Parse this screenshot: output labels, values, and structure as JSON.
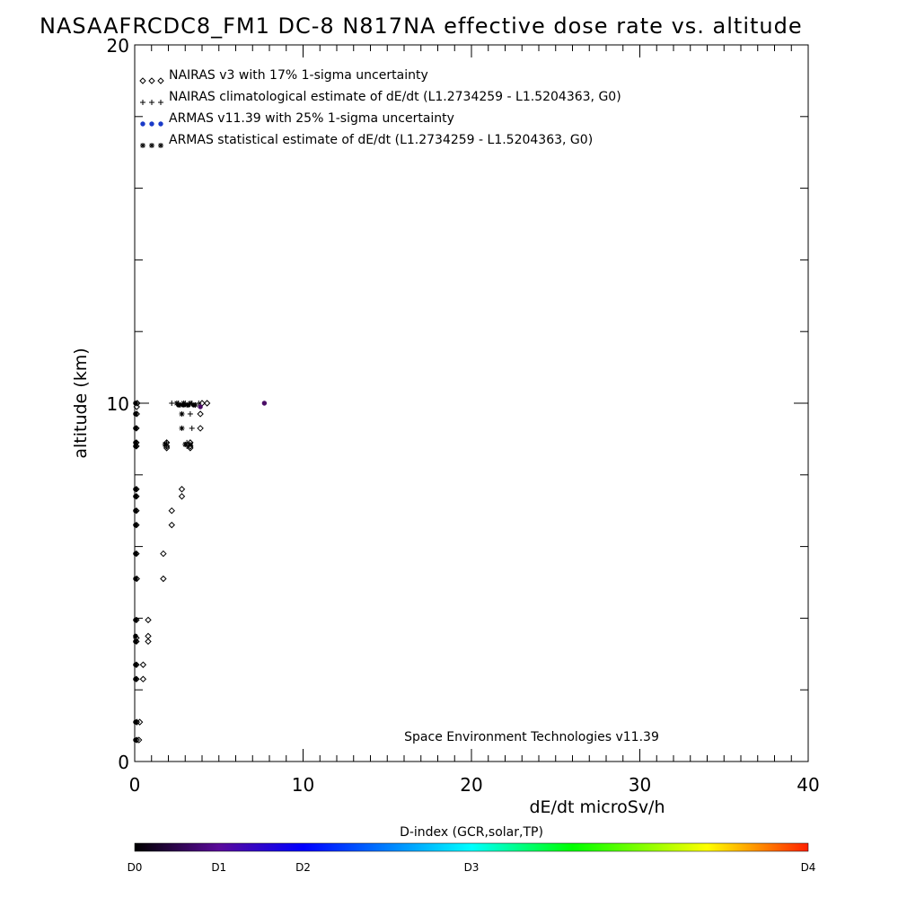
{
  "chart_data": {
    "type": "scatter",
    "title": "NASAAFRCDC8_FM1 DC-8   N817NA effective dose rate vs. altitude",
    "xlabel": "dE/dt microSv/h",
    "ylabel": "altitude (km)",
    "xlim": [
      0,
      40
    ],
    "ylim": [
      0,
      20
    ],
    "x_ticks": [
      0,
      10,
      20,
      30,
      40
    ],
    "y_ticks": [
      0,
      10,
      20
    ],
    "grid": false,
    "legend_position": "top-left",
    "annotation": "Space Environment Technologies v11.39",
    "colorbar": {
      "title": "D-index (GCR,solar,TP)",
      "labels": [
        "D0",
        "D1",
        "D2",
        "D3",
        "D4"
      ],
      "label_positions": [
        0,
        0.125,
        0.25,
        0.5,
        1.0
      ]
    },
    "series": [
      {
        "name": "NAIRAS v3 with 17% 1-sigma uncertainty",
        "marker": "diamond",
        "color": "#000000",
        "points": [
          [
            0.15,
            10.0
          ],
          [
            0.12,
            9.9
          ],
          [
            0.12,
            9.7
          ],
          [
            0.1,
            9.3
          ],
          [
            0.1,
            8.9
          ],
          [
            0.1,
            8.8
          ],
          [
            0.1,
            7.6
          ],
          [
            0.1,
            7.4
          ],
          [
            0.1,
            7.0
          ],
          [
            0.1,
            6.6
          ],
          [
            0.1,
            5.8
          ],
          [
            0.12,
            5.1
          ],
          [
            0.1,
            3.95
          ],
          [
            0.1,
            3.45
          ],
          [
            0.1,
            3.35
          ],
          [
            0.1,
            2.7
          ],
          [
            0.1,
            2.3
          ],
          [
            0.12,
            1.1
          ],
          [
            0.12,
            0.6
          ],
          [
            0.8,
            3.95
          ],
          [
            0.8,
            3.5
          ],
          [
            0.8,
            3.35
          ],
          [
            0.5,
            2.7
          ],
          [
            0.5,
            2.3
          ],
          [
            0.3,
            1.1
          ],
          [
            0.25,
            0.6
          ],
          [
            1.7,
            5.8
          ],
          [
            1.7,
            5.1
          ],
          [
            2.2,
            7.0
          ],
          [
            2.2,
            6.6
          ],
          [
            2.8,
            7.6
          ],
          [
            2.8,
            7.4
          ],
          [
            1.9,
            8.9
          ],
          [
            1.9,
            8.8
          ],
          [
            1.9,
            8.75
          ],
          [
            3.3,
            8.9
          ],
          [
            3.3,
            8.8
          ],
          [
            3.3,
            8.75
          ],
          [
            3.9,
            9.3
          ],
          [
            3.9,
            9.7
          ],
          [
            4.0,
            10.0
          ],
          [
            4.3,
            10.0
          ]
        ]
      },
      {
        "name": "NAIRAS climatological estimate of dE/dt (L1.2734259 - L1.5204363, G0)",
        "marker": "plus",
        "color": "#000000",
        "points": [
          [
            2.2,
            10.0
          ],
          [
            2.6,
            10.0
          ],
          [
            3.0,
            10.0
          ],
          [
            3.4,
            10.0
          ],
          [
            3.8,
            10.0
          ],
          [
            3.3,
            9.7
          ],
          [
            3.4,
            9.3
          ],
          [
            3.1,
            8.9
          ],
          [
            3.1,
            8.8
          ],
          [
            1.9,
            8.9
          ],
          [
            1.9,
            8.8
          ]
        ]
      },
      {
        "name": "ARMAS v11.39 with 25% 1-sigma uncertainty",
        "marker": "dot",
        "color": "#1a3ac8",
        "points": [
          [
            0.05,
            10.0
          ],
          [
            0.05,
            9.7
          ],
          [
            0.05,
            9.3
          ],
          [
            0.05,
            8.9
          ],
          [
            0.05,
            8.8
          ],
          [
            0.05,
            7.6
          ],
          [
            0.05,
            7.4
          ],
          [
            0.05,
            7.0
          ],
          [
            0.05,
            6.6
          ],
          [
            0.05,
            5.8
          ],
          [
            0.05,
            5.1
          ],
          [
            0.05,
            3.95
          ],
          [
            0.05,
            3.5
          ],
          [
            0.05,
            3.35
          ],
          [
            0.05,
            2.7
          ],
          [
            0.05,
            2.3
          ],
          [
            0.05,
            1.1
          ],
          [
            0.05,
            0.6
          ],
          [
            2.6,
            9.95
          ],
          [
            2.9,
            9.95
          ],
          [
            3.2,
            9.95
          ],
          [
            3.5,
            9.95
          ],
          [
            3.9,
            9.9
          ],
          [
            7.7,
            10.0
          ]
        ],
        "point_colors": [
          "#000000",
          "#000000",
          "#000000",
          "#000000",
          "#000000",
          "#000000",
          "#000000",
          "#000000",
          "#000000",
          "#000000",
          "#000000",
          "#000000",
          "#000000",
          "#000000",
          "#000000",
          "#000000",
          "#000000",
          "#000000",
          "#000000",
          "#000000",
          "#000000",
          "#000000",
          "#4a0d66",
          "#4a0d66"
        ]
      },
      {
        "name": "ARMAS statistical estimate of dE/dt (L1.2734259 - L1.5204363, G0)",
        "marker": "asterisk",
        "color": "#000000",
        "points": [
          [
            2.5,
            10.0
          ],
          [
            2.7,
            9.95
          ],
          [
            2.9,
            10.0
          ],
          [
            3.1,
            9.95
          ],
          [
            3.3,
            10.0
          ],
          [
            3.6,
            9.95
          ],
          [
            2.8,
            9.7
          ],
          [
            2.8,
            9.3
          ],
          [
            3.0,
            8.85
          ],
          [
            3.3,
            8.85
          ],
          [
            1.8,
            8.85
          ]
        ]
      }
    ]
  }
}
